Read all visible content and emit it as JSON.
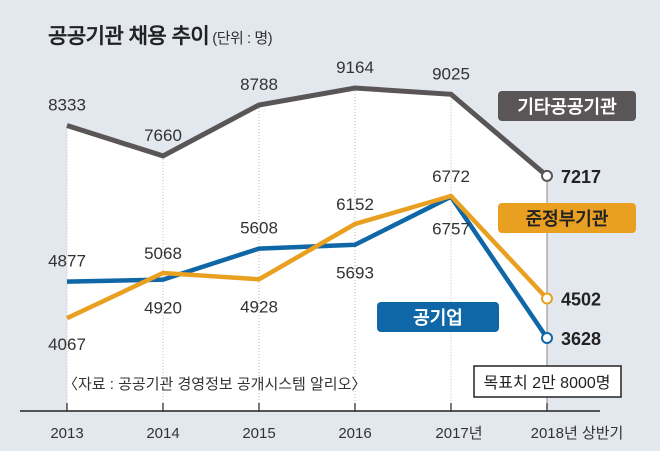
{
  "title": "공공기관 채용 추이",
  "unit": "(단위 : 명)",
  "source": "〈자료 : 공공기관 경영정보 공개시스템 알리오〉",
  "target_note": "목표치 2만 8000명",
  "colors": {
    "background": "#e3e7ee",
    "plot_fill": "#ffffff",
    "others": "#5a5657",
    "quasi_gov": "#e9a021",
    "public_enterprise": "#0f67a7"
  },
  "chart_data": {
    "type": "line",
    "title": "공공기관 채용 추이",
    "subtitle": "(단위 : 명)",
    "xlabel": "",
    "ylabel": "",
    "categories": [
      "2013",
      "2014",
      "2015",
      "2016",
      "2017년",
      "2018년 상반기"
    ],
    "ylim": [
      3000,
      9500
    ],
    "grid": "vertical-dotted",
    "legend": "inline-labels-right",
    "series": [
      {
        "name": "기타공공기관",
        "key": "others",
        "values": [
          8333,
          7660,
          8788,
          9164,
          9025,
          7217
        ]
      },
      {
        "name": "준정부기관",
        "key": "quasi_gov",
        "values": [
          4067,
          5068,
          4928,
          6152,
          6772,
          4502
        ]
      },
      {
        "name": "공기업",
        "key": "public_enterprise",
        "values": [
          4877,
          4920,
          5608,
          5693,
          6757,
          3628
        ]
      }
    ],
    "annotations": [
      "〈자료 : 공공기관 경영정보 공개시스템 알리오〉",
      "목표치 2만 8000명"
    ]
  }
}
